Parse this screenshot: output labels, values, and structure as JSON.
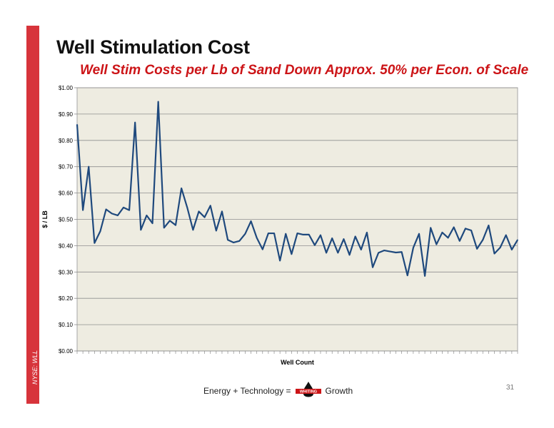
{
  "slide": {
    "title": "Well Stimulation Cost",
    "subtitle": "Well Stim Costs per Lb of Sand Down Approx. 50% per Econ. of Scale",
    "side_label": "NYSE: WLL",
    "page_number": "31",
    "accent_color": "#d7343b",
    "subtitle_color": "#cc1417"
  },
  "footer": {
    "left_text": "Energy + Technology =",
    "logo_text": "WHITING",
    "right_text": "Growth"
  },
  "chart_data": {
    "type": "line",
    "title": "",
    "xlabel": "Well Count",
    "ylabel": "$ / LB",
    "ylim": [
      0,
      1
    ],
    "grid": true,
    "legend": "none",
    "plot_background": "#eeece1",
    "line_color": "#1f497d",
    "y_ticks": [
      "$0.00",
      "$0.10",
      "$0.20",
      "$0.30",
      "$0.40",
      "$0.50",
      "$0.60",
      "$0.70",
      "$0.80",
      "$0.90",
      "$1.00"
    ],
    "series": [
      {
        "values": [
          0.86,
          0.535,
          0.7,
          0.41,
          0.455,
          0.538,
          0.522,
          0.515,
          0.545,
          0.535,
          0.868,
          0.46,
          0.515,
          0.485,
          0.947,
          0.468,
          0.495,
          0.478,
          0.618,
          0.545,
          0.46,
          0.53,
          0.508,
          0.552,
          0.457,
          0.53,
          0.422,
          0.412,
          0.418,
          0.445,
          0.493,
          0.43,
          0.386,
          0.447,
          0.447,
          0.343,
          0.445,
          0.368,
          0.447,
          0.442,
          0.442,
          0.402,
          0.44,
          0.373,
          0.428,
          0.373,
          0.425,
          0.365,
          0.435,
          0.385,
          0.45,
          0.318,
          0.373,
          0.382,
          0.378,
          0.374,
          0.376,
          0.287,
          0.392,
          0.445,
          0.285,
          0.468,
          0.405,
          0.45,
          0.43,
          0.47,
          0.418,
          0.465,
          0.458,
          0.388,
          0.422,
          0.477,
          0.37,
          0.393,
          0.44,
          0.385,
          0.422
        ]
      }
    ]
  }
}
